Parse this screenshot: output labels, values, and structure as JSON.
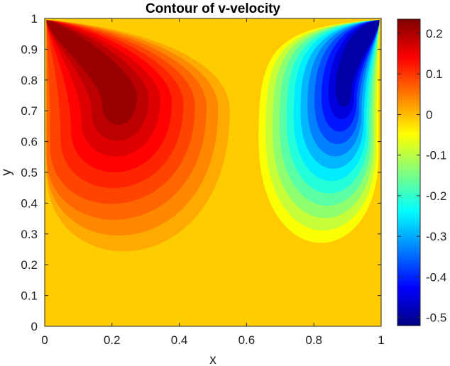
{
  "chart_data": {
    "type": "contour",
    "title": "Contour of v-velocity",
    "xlabel": "x",
    "ylabel": "y",
    "xlim": [
      0,
      1
    ],
    "ylim": [
      0,
      1
    ],
    "x_ticks": [
      "0",
      "0.2",
      "0.4",
      "0.6",
      "0.8",
      "1"
    ],
    "y_ticks": [
      "0",
      "0.1",
      "0.2",
      "0.3",
      "0.4",
      "0.5",
      "0.6",
      "0.7",
      "0.8",
      "0.9",
      "1"
    ],
    "colormap": "jet",
    "colorbar": {
      "limits": [
        -0.52,
        0.235
      ],
      "ticks": [
        "0.2",
        "0.1",
        "0",
        "-0.1",
        "-0.2",
        "-0.3",
        "-0.4",
        "-0.5"
      ],
      "tick_values": [
        0.2,
        0.1,
        0,
        -0.1,
        -0.2,
        -0.3,
        -0.4,
        -0.5
      ]
    },
    "features": [
      {
        "kind": "maximum",
        "x": 0.22,
        "y": 0.75,
        "value": 0.23
      },
      {
        "kind": "minimum",
        "x": 0.9,
        "y": 0.79,
        "value": -0.52
      }
    ],
    "grid": false,
    "legend": "colorbar-right"
  }
}
